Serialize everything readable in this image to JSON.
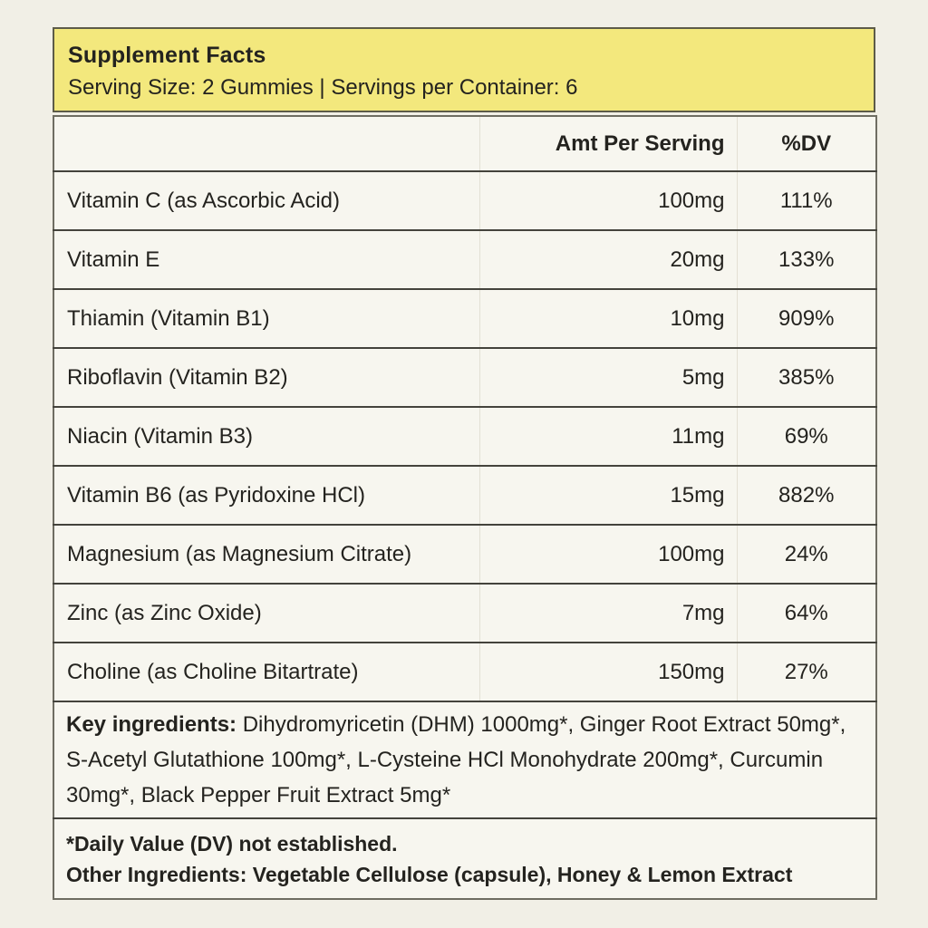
{
  "colors": {
    "page_background": "#f1efe6",
    "header_background": "#f3e87d",
    "label_background": "#f7f6ef",
    "text": "#24231f"
  },
  "label": {
    "header": {
      "title": "Supplement Facts",
      "serving_line": "Serving Size: 2 Gummies | Servings per Container: 6"
    },
    "table": {
      "amount_header": "Amt Per Serving",
      "dv_header": "%DV",
      "rows": [
        {
          "name": "Vitamin C (as Ascorbic Acid)",
          "amount": "100mg",
          "dv": "111%"
        },
        {
          "name": "Vitamin E",
          "amount": "20mg",
          "dv": "133%"
        },
        {
          "name": "Thiamin (Vitamin B1)",
          "amount": "10mg",
          "dv": "909%"
        },
        {
          "name": "Riboflavin (Vitamin B2)",
          "amount": "5mg",
          "dv": "385%"
        },
        {
          "name": "Niacin (Vitamin B3)",
          "amount": "11mg",
          "dv": "69%"
        },
        {
          "name": "Vitamin B6 (as Pyridoxine HCl)",
          "amount": "15mg",
          "dv": "882%"
        },
        {
          "name": "Magnesium (as Magnesium Citrate)",
          "amount": "100mg",
          "dv": "24%"
        },
        {
          "name": "Zinc (as Zinc Oxide)",
          "amount": "7mg",
          "dv": "64%"
        },
        {
          "name": "Choline (as Choline Bitartrate)",
          "amount": "150mg",
          "dv": "27%"
        }
      ]
    },
    "key_ingredients": {
      "label": "Key ingredients:",
      "text": " Dihydromyricetin (DHM) 1000mg*, Ginger Root Extract 50mg*, S-Acetyl Glutathione 100mg*, L-Cysteine HCl Monohydrate 200mg*, Curcumin 30mg*, Black Pepper Fruit Extract 5mg*"
    },
    "footnotes": {
      "dv_note": "*Daily Value (DV) not established.",
      "other_ingredients": "Other Ingredients: Vegetable Cellulose (capsule), Honey & Lemon Extract"
    }
  }
}
